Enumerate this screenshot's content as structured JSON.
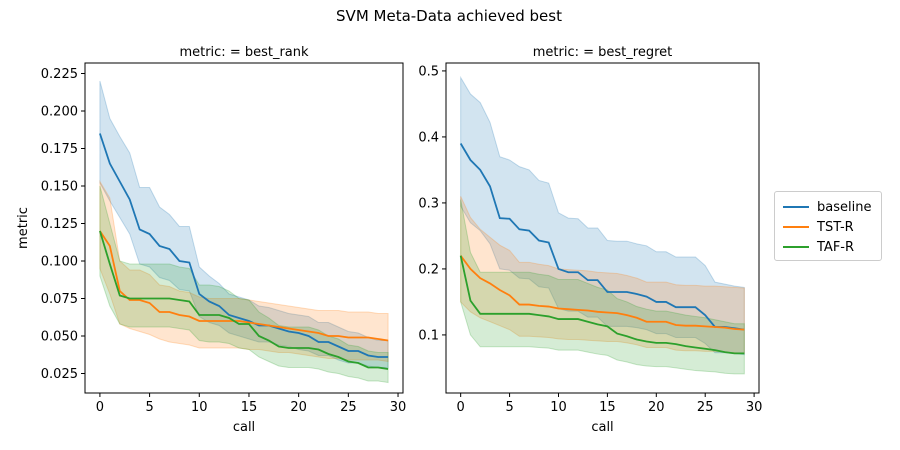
{
  "figure_title": "SVM Meta-Data achieved best",
  "legend": [
    {
      "name": "baseline",
      "color": "#1f77b4"
    },
    {
      "name": "TST-R",
      "color": "#ff7f0e"
    },
    {
      "name": "TAF-R",
      "color": "#2ca02c"
    }
  ],
  "chart_data": [
    {
      "type": "line",
      "title": "metric:  = best_rank",
      "xlabel": "call",
      "ylabel": "metric",
      "xlim": [
        -1.5,
        30.5
      ],
      "ylim": [
        0.012,
        0.232
      ],
      "xticks": [
        0,
        5,
        10,
        15,
        20,
        25,
        30
      ],
      "yticks": [
        0.025,
        0.05,
        0.075,
        0.1,
        0.125,
        0.15,
        0.175,
        0.2,
        0.225
      ],
      "ytick_labels": [
        "0.025",
        "0.050",
        "0.075",
        "0.100",
        "0.125",
        "0.150",
        "0.175",
        "0.200",
        "0.225"
      ],
      "x": [
        0,
        1,
        2,
        3,
        4,
        5,
        6,
        7,
        8,
        9,
        10,
        11,
        12,
        13,
        14,
        15,
        16,
        17,
        18,
        19,
        20,
        21,
        22,
        23,
        24,
        25,
        26,
        27,
        28,
        29
      ],
      "series": [
        {
          "name": "baseline",
          "color": "#1f77b4",
          "values": [
            0.185,
            0.165,
            0.153,
            0.141,
            0.121,
            0.118,
            0.11,
            0.108,
            0.1,
            0.099,
            0.078,
            0.073,
            0.07,
            0.064,
            0.062,
            0.06,
            0.057,
            0.057,
            0.055,
            0.053,
            0.052,
            0.05,
            0.046,
            0.046,
            0.043,
            0.04,
            0.04,
            0.037,
            0.036,
            0.036
          ],
          "upper": [
            0.22,
            0.195,
            0.183,
            0.172,
            0.149,
            0.149,
            0.136,
            0.131,
            0.123,
            0.123,
            0.096,
            0.09,
            0.085,
            0.078,
            0.076,
            0.074,
            0.07,
            0.069,
            0.067,
            0.065,
            0.064,
            0.063,
            0.059,
            0.059,
            0.056,
            0.053,
            0.052,
            0.049,
            0.047,
            0.047
          ],
          "lower": [
            0.152,
            0.14,
            0.129,
            0.118,
            0.098,
            0.096,
            0.089,
            0.087,
            0.081,
            0.08,
            0.063,
            0.059,
            0.057,
            0.052,
            0.05,
            0.048,
            0.046,
            0.046,
            0.044,
            0.043,
            0.041,
            0.04,
            0.037,
            0.037,
            0.034,
            0.032,
            0.032,
            0.03,
            0.029,
            0.029
          ]
        },
        {
          "name": "TST-R",
          "color": "#ff7f0e",
          "values": [
            0.12,
            0.11,
            0.08,
            0.074,
            0.074,
            0.072,
            0.066,
            0.066,
            0.064,
            0.063,
            0.06,
            0.06,
            0.06,
            0.06,
            0.06,
            0.059,
            0.058,
            0.057,
            0.056,
            0.055,
            0.054,
            0.053,
            0.052,
            0.05,
            0.05,
            0.049,
            0.049,
            0.049,
            0.048,
            0.047
          ],
          "upper": [
            0.153,
            0.142,
            0.1,
            0.094,
            0.094,
            0.091,
            0.084,
            0.083,
            0.08,
            0.079,
            0.076,
            0.075,
            0.075,
            0.075,
            0.075,
            0.074,
            0.073,
            0.072,
            0.071,
            0.07,
            0.069,
            0.068,
            0.067,
            0.067,
            0.067,
            0.066,
            0.066,
            0.066,
            0.065,
            0.065
          ],
          "lower": [
            0.095,
            0.078,
            0.058,
            0.055,
            0.053,
            0.051,
            0.048,
            0.046,
            0.045,
            0.044,
            0.042,
            0.042,
            0.042,
            0.042,
            0.042,
            0.041,
            0.041,
            0.04,
            0.039,
            0.039,
            0.038,
            0.037,
            0.036,
            0.035,
            0.035,
            0.034,
            0.034,
            0.034,
            0.034,
            0.033
          ]
        },
        {
          "name": "TAF-R",
          "color": "#2ca02c",
          "values": [
            0.12,
            0.098,
            0.077,
            0.075,
            0.075,
            0.075,
            0.075,
            0.075,
            0.074,
            0.073,
            0.064,
            0.064,
            0.064,
            0.062,
            0.058,
            0.058,
            0.05,
            0.047,
            0.043,
            0.042,
            0.042,
            0.042,
            0.041,
            0.038,
            0.036,
            0.033,
            0.032,
            0.029,
            0.029,
            0.028
          ],
          "upper": [
            0.15,
            0.125,
            0.1,
            0.098,
            0.098,
            0.098,
            0.098,
            0.098,
            0.096,
            0.095,
            0.084,
            0.084,
            0.083,
            0.08,
            0.075,
            0.074,
            0.066,
            0.062,
            0.057,
            0.056,
            0.056,
            0.056,
            0.054,
            0.05,
            0.048,
            0.044,
            0.043,
            0.04,
            0.039,
            0.039
          ],
          "lower": [
            0.09,
            0.07,
            0.058,
            0.056,
            0.056,
            0.056,
            0.056,
            0.056,
            0.055,
            0.054,
            0.047,
            0.046,
            0.046,
            0.045,
            0.042,
            0.041,
            0.036,
            0.033,
            0.03,
            0.029,
            0.029,
            0.029,
            0.028,
            0.026,
            0.025,
            0.023,
            0.022,
            0.02,
            0.02,
            0.019
          ]
        }
      ]
    },
    {
      "type": "line",
      "title": "metric:  = best_regret",
      "xlabel": "call",
      "ylabel": "",
      "xlim": [
        -1.5,
        30.5
      ],
      "ylim": [
        0.012,
        0.512
      ],
      "xticks": [
        0,
        5,
        10,
        15,
        20,
        25,
        30
      ],
      "yticks": [
        0.1,
        0.2,
        0.3,
        0.4,
        0.5
      ],
      "ytick_labels": [
        "0.1",
        "0.2",
        "0.3",
        "0.4",
        "0.5"
      ],
      "x": [
        0,
        1,
        2,
        3,
        4,
        5,
        6,
        7,
        8,
        9,
        10,
        11,
        12,
        13,
        14,
        15,
        16,
        17,
        18,
        19,
        20,
        21,
        22,
        23,
        24,
        25,
        26,
        27,
        28,
        29
      ],
      "series": [
        {
          "name": "baseline",
          "color": "#1f77b4",
          "values": [
            0.39,
            0.365,
            0.35,
            0.325,
            0.277,
            0.276,
            0.26,
            0.258,
            0.243,
            0.24,
            0.2,
            0.195,
            0.195,
            0.183,
            0.183,
            0.165,
            0.165,
            0.165,
            0.162,
            0.158,
            0.15,
            0.15,
            0.142,
            0.142,
            0.142,
            0.13,
            0.112,
            0.112,
            0.11,
            0.108
          ],
          "upper": [
            0.49,
            0.465,
            0.452,
            0.422,
            0.37,
            0.365,
            0.355,
            0.35,
            0.334,
            0.33,
            0.285,
            0.277,
            0.276,
            0.262,
            0.262,
            0.243,
            0.242,
            0.242,
            0.238,
            0.235,
            0.226,
            0.226,
            0.218,
            0.218,
            0.218,
            0.205,
            0.18,
            0.177,
            0.174,
            0.172
          ],
          "lower": [
            0.295,
            0.27,
            0.258,
            0.238,
            0.2,
            0.198,
            0.186,
            0.185,
            0.173,
            0.171,
            0.14,
            0.136,
            0.136,
            0.127,
            0.127,
            0.113,
            0.113,
            0.113,
            0.111,
            0.108,
            0.102,
            0.102,
            0.096,
            0.096,
            0.096,
            0.087,
            0.073,
            0.073,
            0.072,
            0.07
          ]
        },
        {
          "name": "TST-R",
          "color": "#ff7f0e",
          "values": [
            0.22,
            0.2,
            0.186,
            0.178,
            0.168,
            0.16,
            0.146,
            0.146,
            0.144,
            0.143,
            0.14,
            0.139,
            0.138,
            0.137,
            0.135,
            0.134,
            0.133,
            0.13,
            0.126,
            0.12,
            0.12,
            0.12,
            0.115,
            0.114,
            0.114,
            0.113,
            0.112,
            0.111,
            0.109,
            0.108
          ],
          "upper": [
            0.31,
            0.278,
            0.26,
            0.248,
            0.236,
            0.228,
            0.21,
            0.21,
            0.207,
            0.205,
            0.2,
            0.199,
            0.198,
            0.197,
            0.195,
            0.194,
            0.193,
            0.19,
            0.186,
            0.18,
            0.18,
            0.18,
            0.176,
            0.175,
            0.175,
            0.174,
            0.174,
            0.173,
            0.172,
            0.171
          ],
          "lower": [
            0.15,
            0.135,
            0.126,
            0.12,
            0.114,
            0.108,
            0.098,
            0.098,
            0.097,
            0.096,
            0.094,
            0.093,
            0.093,
            0.092,
            0.091,
            0.09,
            0.09,
            0.088,
            0.085,
            0.081,
            0.081,
            0.081,
            0.077,
            0.076,
            0.076,
            0.075,
            0.075,
            0.074,
            0.073,
            0.072
          ]
        },
        {
          "name": "TAF-R",
          "color": "#2ca02c",
          "values": [
            0.22,
            0.152,
            0.132,
            0.132,
            0.132,
            0.132,
            0.132,
            0.132,
            0.13,
            0.128,
            0.124,
            0.124,
            0.124,
            0.12,
            0.116,
            0.113,
            0.102,
            0.098,
            0.093,
            0.09,
            0.088,
            0.088,
            0.086,
            0.083,
            0.081,
            0.079,
            0.077,
            0.074,
            0.072,
            0.072
          ],
          "upper": [
            0.305,
            0.225,
            0.195,
            0.195,
            0.195,
            0.195,
            0.195,
            0.195,
            0.192,
            0.19,
            0.184,
            0.184,
            0.184,
            0.178,
            0.172,
            0.168,
            0.155,
            0.15,
            0.143,
            0.139,
            0.136,
            0.136,
            0.133,
            0.13,
            0.128,
            0.126,
            0.123,
            0.12,
            0.117,
            0.117
          ],
          "lower": [
            0.15,
            0.1,
            0.082,
            0.082,
            0.082,
            0.082,
            0.082,
            0.082,
            0.081,
            0.08,
            0.077,
            0.077,
            0.077,
            0.074,
            0.071,
            0.069,
            0.062,
            0.059,
            0.055,
            0.053,
            0.052,
            0.052,
            0.05,
            0.048,
            0.046,
            0.045,
            0.044,
            0.042,
            0.041,
            0.041
          ]
        }
      ]
    }
  ]
}
